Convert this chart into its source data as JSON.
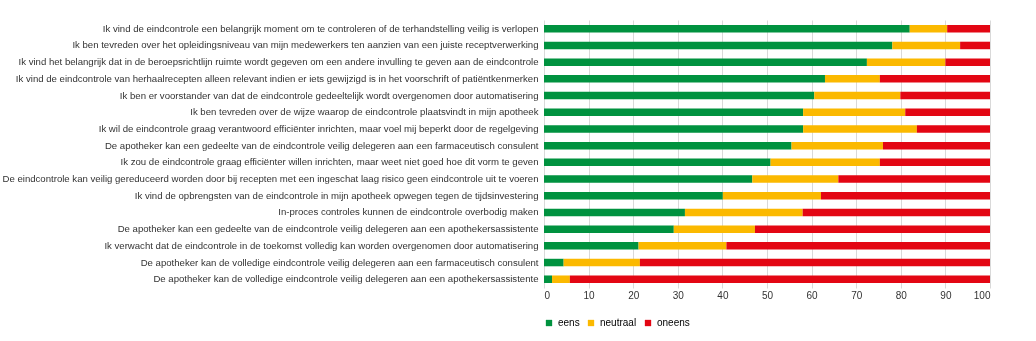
{
  "chart_data": {
    "type": "bar",
    "orientation": "horizontal",
    "stacked": true,
    "categories": [
      "Ik vind de eindcontrole een belangrijk moment om te controleren of de terhandstelling veilig is verlopen",
      "Ik ben tevreden over het opleidingsniveau van mijn medewerkers ten aanzien van een juiste receptverwerking",
      "Ik vind het belangrijk dat in de beroepsrichtlijn ruimte wordt gegeven om een andere invulling te geven aan de eindcontrole",
      "Ik vind de eindcontrole van herhaalrecepten alleen relevant indien er iets gewijzigd is in het voorschrift of patiëntkenmerken",
      "Ik ben er voorstander van dat de eindcontrole gedeeltelijk wordt overgenomen door automatisering",
      "Ik ben tevreden over de wijze waarop de eindcontrole plaatsvindt in mijn apotheek",
      "Ik wil de eindcontrole graag verantwoord efficiënter inrichten, maar voel mij beperkt door de regelgeving",
      "De apotheker kan een gedeelte van de eindcontrole veilig delegeren aan een farmaceutisch consulent",
      "Ik zou de eindcontrole graag efficiënter willen inrichten, maar weet niet goed hoe dit vorm te geven",
      "De eindcontrole kan veilig gereduceerd worden door bij recepten met een ingeschat laag risico geen eindcontrole uit te voeren",
      "Ik vind de opbrengsten van de eindcontrole in mijn apotheek opwegen tegen de tijdsinvestering",
      "In-proces controles kunnen de eindcontrole overbodig maken",
      "De apotheker kan een gedeelte van de eindcontrole veilig delegeren aan een apothekersassistente",
      "Ik verwacht dat de eindcontrole in de toekomst volledig kan worden overgenomen door automatisering",
      "De apotheker kan de volledige eindcontrole veilig delegeren aan een farmaceutisch consulent",
      "De apotheker kan de volledige eindcontrole veilig delegeren aan een apothekersassistente"
    ],
    "series": [
      {
        "name": "eens",
        "color": "#00923f",
        "values": [
          82,
          78.1,
          72.4,
          63,
          60.6,
          58.1,
          58.1,
          55.5,
          50.8,
          46.7,
          40.1,
          31.6,
          29.1,
          21.2,
          4.4,
          1.8
        ]
      },
      {
        "name": "neutraal",
        "color": "#fbb900",
        "values": [
          8.4,
          15.2,
          17.6,
          12.3,
          19.3,
          22.9,
          25.5,
          20.5,
          24.5,
          19.3,
          22,
          26.4,
          18.2,
          19.7,
          17.1,
          4
        ]
      },
      {
        "name": "oneens",
        "color": "#e30613",
        "values": [
          9.6,
          6.7,
          10,
          24.7,
          20.1,
          19,
          16.4,
          24,
          24.7,
          34,
          37.9,
          42,
          52.7,
          59.1,
          78.5,
          94.2
        ]
      }
    ],
    "xlim": [
      0,
      100
    ],
    "xticks": [
      0,
      10,
      20,
      30,
      40,
      50,
      60,
      70,
      80,
      90,
      100
    ],
    "grid": "x",
    "legend": "bottom"
  }
}
